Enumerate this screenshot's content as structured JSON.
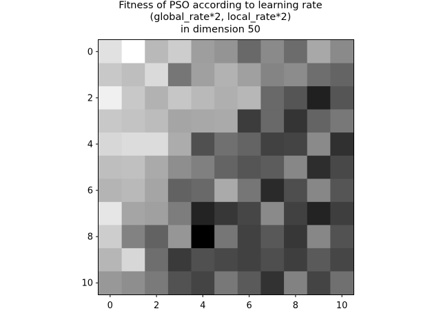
{
  "chart_data": {
    "type": "heatmap",
    "title_lines": [
      "Fitness of PSO according to learning rate",
      "(global_rate*2, local_rate*2)",
      "in dimension 50"
    ],
    "colormap": "gray",
    "x_ticks": [
      "0",
      "2",
      "4",
      "6",
      "8",
      "10"
    ],
    "y_ticks": [
      "0",
      "2",
      "4",
      "6",
      "8",
      "10"
    ],
    "x_tick_values": [
      0,
      2,
      4,
      6,
      8,
      10
    ],
    "y_tick_values": [
      0,
      2,
      4,
      6,
      8,
      10
    ],
    "xlim": [
      -0.5,
      10.5
    ],
    "ylim": [
      10.5,
      -0.5
    ],
    "rows": 11,
    "cols": 11,
    "values": [
      [
        225,
        255,
        185,
        205,
        158,
        148,
        105,
        138,
        108,
        168,
        138
      ],
      [
        200,
        190,
        218,
        118,
        160,
        178,
        160,
        132,
        140,
        110,
        100
      ],
      [
        240,
        200,
        178,
        198,
        185,
        175,
        183,
        105,
        85,
        32,
        85
      ],
      [
        200,
        195,
        188,
        165,
        168,
        170,
        60,
        105,
        52,
        100,
        120
      ],
      [
        215,
        220,
        220,
        172,
        80,
        112,
        100,
        65,
        68,
        138,
        48
      ],
      [
        190,
        192,
        170,
        142,
        128,
        100,
        85,
        92,
        135,
        45,
        72
      ],
      [
        180,
        185,
        165,
        98,
        105,
        170,
        118,
        42,
        78,
        135,
        85
      ],
      [
        230,
        165,
        160,
        125,
        35,
        55,
        70,
        138,
        65,
        35,
        62
      ],
      [
        205,
        130,
        98,
        150,
        0,
        118,
        65,
        88,
        55,
        135,
        82
      ],
      [
        182,
        215,
        110,
        58,
        80,
        72,
        65,
        78,
        62,
        90,
        70
      ],
      [
        152,
        142,
        122,
        82,
        68,
        120,
        90,
        50,
        130,
        68,
        112
      ]
    ]
  }
}
